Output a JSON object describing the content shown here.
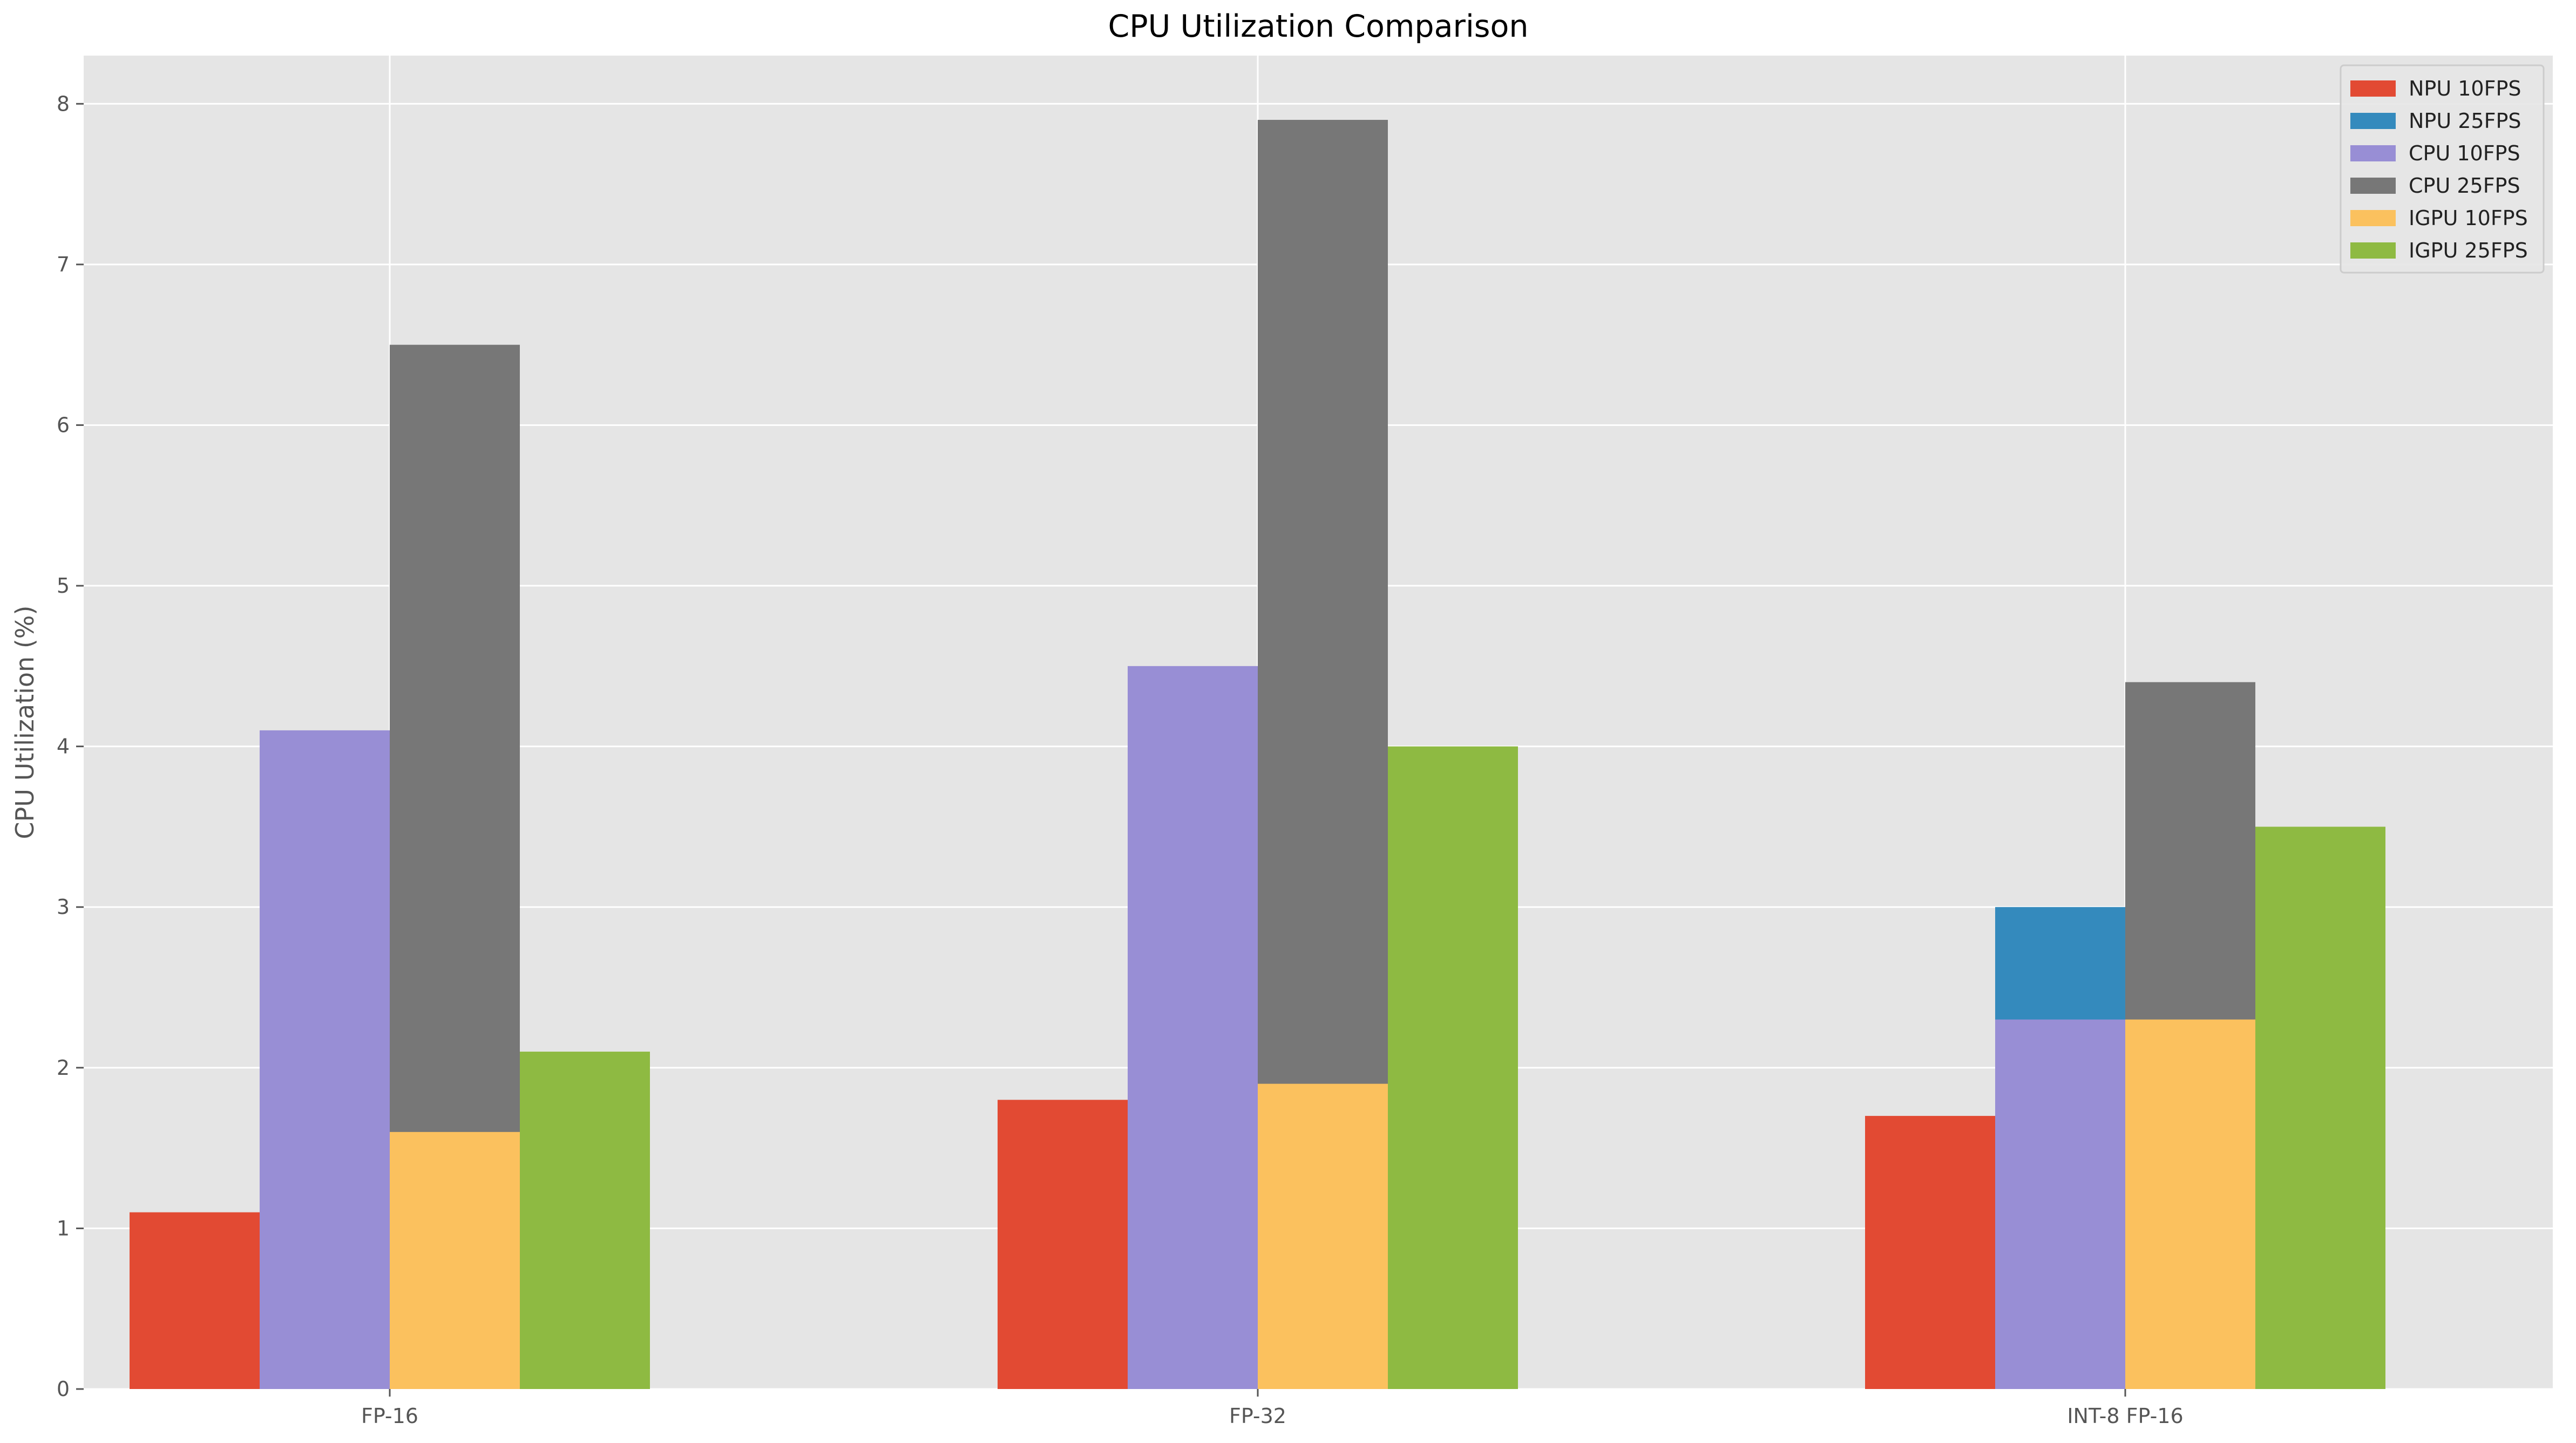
{
  "chart_data": {
    "type": "bar",
    "title": "CPU Utilization Comparison",
    "xlabel": "",
    "ylabel": "CPU Utilization (%)",
    "categories": [
      "FP-16",
      "FP-32",
      "INT-8 FP-16"
    ],
    "ylim": [
      0,
      8.3
    ],
    "yticks": [
      0,
      1,
      2,
      3,
      4,
      5,
      6,
      7,
      8
    ],
    "grid": true,
    "legend_position": "top-right",
    "series": [
      {
        "name": "NPU 10FPS",
        "values": [
          1.1,
          1.8,
          1.7
        ],
        "color": "#E24A33",
        "slot": 0
      },
      {
        "name": "NPU 25FPS",
        "values": [
          null,
          null,
          3.0
        ],
        "color": "#348ABD",
        "slot": 1
      },
      {
        "name": "CPU 10FPS",
        "values": [
          4.1,
          4.5,
          2.3
        ],
        "color": "#988ED5",
        "slot": 1
      },
      {
        "name": "CPU 25FPS",
        "values": [
          6.5,
          7.9,
          4.4
        ],
        "color": "#777777",
        "slot": 2
      },
      {
        "name": "IGPU 10FPS",
        "values": [
          1.6,
          1.9,
          2.3
        ],
        "color": "#FBC15E",
        "slot": 2
      },
      {
        "name": "IGPU 25FPS",
        "values": [
          2.1,
          4.0,
          3.5
        ],
        "color": "#8EBA42",
        "slot": 3
      }
    ],
    "colors": {
      "plot_background": "#E5E5E5",
      "grid": "#FFFFFF",
      "text": "#555555",
      "title": "#000000"
    }
  }
}
